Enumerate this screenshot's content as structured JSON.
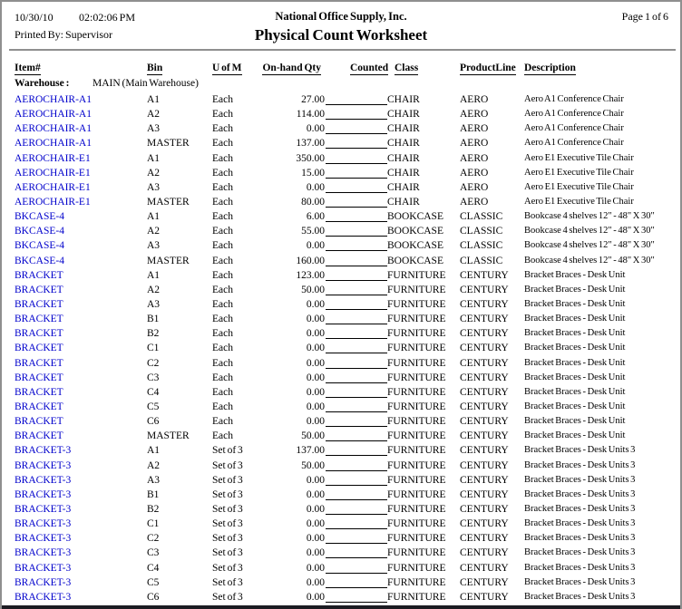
{
  "report": {
    "date": "10/30/10",
    "time": "02:02:06 PM",
    "company": "National Office Supply, Inc.",
    "page": "Page 1 of 6",
    "printed_by": "Printed By: Supervisor",
    "title": "Physical Count Worksheet"
  },
  "colors": {
    "link_blue": "#0000CC",
    "rule_gray": "#8f8f8f",
    "text": "#000000"
  },
  "table": {
    "headers": {
      "item": "Item#",
      "bin": "Bin",
      "uom": "U of M",
      "qty": "On-hand Qty",
      "counted": "Counted",
      "class": "Class",
      "product_line": "ProductLine",
      "description": "Description"
    },
    "warehouse_label": "Warehouse :",
    "warehouse_value": "MAIN (Main Warehouse)",
    "rows": [
      {
        "item": "AEROCHAIR-A1",
        "bin": "A1",
        "uom": "Each",
        "qty": "27.00",
        "class": "CHAIR",
        "product_line": "AERO",
        "description": "Aero A1 Conference Chair"
      },
      {
        "item": "AEROCHAIR-A1",
        "bin": "A2",
        "uom": "Each",
        "qty": "114.00",
        "class": "CHAIR",
        "product_line": "AERO",
        "description": "Aero A1 Conference Chair"
      },
      {
        "item": "AEROCHAIR-A1",
        "bin": "A3",
        "uom": "Each",
        "qty": "0.00",
        "class": "CHAIR",
        "product_line": "AERO",
        "description": "Aero A1 Conference Chair"
      },
      {
        "item": "AEROCHAIR-A1",
        "bin": "MASTER",
        "uom": "Each",
        "qty": "137.00",
        "class": "CHAIR",
        "product_line": "AERO",
        "description": "Aero A1 Conference Chair"
      },
      {
        "item": "AEROCHAIR-E1",
        "bin": "A1",
        "uom": "Each",
        "qty": "350.00",
        "class": "CHAIR",
        "product_line": "AERO",
        "description": "Aero E1 Executive Tile Chair"
      },
      {
        "item": "AEROCHAIR-E1",
        "bin": "A2",
        "uom": "Each",
        "qty": "15.00",
        "class": "CHAIR",
        "product_line": "AERO",
        "description": "Aero E1 Executive Tile Chair"
      },
      {
        "item": "AEROCHAIR-E1",
        "bin": "A3",
        "uom": "Each",
        "qty": "0.00",
        "class": "CHAIR",
        "product_line": "AERO",
        "description": "Aero E1 Executive Tile Chair"
      },
      {
        "item": "AEROCHAIR-E1",
        "bin": "MASTER",
        "uom": "Each",
        "qty": "80.00",
        "class": "CHAIR",
        "product_line": "AERO",
        "description": "Aero E1 Executive Tile Chair"
      },
      {
        "item": "BKCASE-4",
        "bin": "A1",
        "uom": "Each",
        "qty": "6.00",
        "class": "BOOKCASE",
        "product_line": "CLASSIC",
        "description": "Bookcase 4 shelves 12\" - 48\" X 30\""
      },
      {
        "item": "BKCASE-4",
        "bin": "A2",
        "uom": "Each",
        "qty": "55.00",
        "class": "BOOKCASE",
        "product_line": "CLASSIC",
        "description": "Bookcase 4 shelves 12\" - 48\" X 30\""
      },
      {
        "item": "BKCASE-4",
        "bin": "A3",
        "uom": "Each",
        "qty": "0.00",
        "class": "BOOKCASE",
        "product_line": "CLASSIC",
        "description": "Bookcase 4 shelves 12\" - 48\" X 30\""
      },
      {
        "item": "BKCASE-4",
        "bin": "MASTER",
        "uom": "Each",
        "qty": "160.00",
        "class": "BOOKCASE",
        "product_line": "CLASSIC",
        "description": "Bookcase 4 shelves 12\" - 48\" X 30\""
      },
      {
        "item": "BRACKET",
        "bin": "A1",
        "uom": "Each",
        "qty": "123.00",
        "class": "FURNITURE",
        "product_line": "CENTURY",
        "description": "Bracket Braces - Desk Unit"
      },
      {
        "item": "BRACKET",
        "bin": "A2",
        "uom": "Each",
        "qty": "50.00",
        "class": "FURNITURE",
        "product_line": "CENTURY",
        "description": "Bracket Braces - Desk Unit"
      },
      {
        "item": "BRACKET",
        "bin": "A3",
        "uom": "Each",
        "qty": "0.00",
        "class": "FURNITURE",
        "product_line": "CENTURY",
        "description": "Bracket Braces - Desk Unit"
      },
      {
        "item": "BRACKET",
        "bin": "B1",
        "uom": "Each",
        "qty": "0.00",
        "class": "FURNITURE",
        "product_line": "CENTURY",
        "description": "Bracket Braces - Desk Unit"
      },
      {
        "item": "BRACKET",
        "bin": "B2",
        "uom": "Each",
        "qty": "0.00",
        "class": "FURNITURE",
        "product_line": "CENTURY",
        "description": "Bracket Braces - Desk Unit"
      },
      {
        "item": "BRACKET",
        "bin": "C1",
        "uom": "Each",
        "qty": "0.00",
        "class": "FURNITURE",
        "product_line": "CENTURY",
        "description": "Bracket Braces - Desk Unit"
      },
      {
        "item": "BRACKET",
        "bin": "C2",
        "uom": "Each",
        "qty": "0.00",
        "class": "FURNITURE",
        "product_line": "CENTURY",
        "description": "Bracket Braces - Desk Unit"
      },
      {
        "item": "BRACKET",
        "bin": "C3",
        "uom": "Each",
        "qty": "0.00",
        "class": "FURNITURE",
        "product_line": "CENTURY",
        "description": "Bracket Braces - Desk Unit"
      },
      {
        "item": "BRACKET",
        "bin": "C4",
        "uom": "Each",
        "qty": "0.00",
        "class": "FURNITURE",
        "product_line": "CENTURY",
        "description": "Bracket Braces - Desk Unit"
      },
      {
        "item": "BRACKET",
        "bin": "C5",
        "uom": "Each",
        "qty": "0.00",
        "class": "FURNITURE",
        "product_line": "CENTURY",
        "description": "Bracket Braces - Desk Unit"
      },
      {
        "item": "BRACKET",
        "bin": "C6",
        "uom": "Each",
        "qty": "0.00",
        "class": "FURNITURE",
        "product_line": "CENTURY",
        "description": "Bracket Braces - Desk Unit"
      },
      {
        "item": "BRACKET",
        "bin": "MASTER",
        "uom": "Each",
        "qty": "50.00",
        "class": "FURNITURE",
        "product_line": "CENTURY",
        "description": "Bracket Braces - Desk Unit"
      },
      {
        "item": "BRACKET-3",
        "bin": "A1",
        "uom": "Set of 3",
        "qty": "137.00",
        "class": "FURNITURE",
        "product_line": "CENTURY",
        "description": "Bracket Braces - Desk Units 3"
      },
      {
        "item": "BRACKET-3",
        "bin": "A2",
        "uom": "Set of 3",
        "qty": "50.00",
        "class": "FURNITURE",
        "product_line": "CENTURY",
        "description": "Bracket Braces - Desk Units 3"
      },
      {
        "item": "BRACKET-3",
        "bin": "A3",
        "uom": "Set of 3",
        "qty": "0.00",
        "class": "FURNITURE",
        "product_line": "CENTURY",
        "description": "Bracket Braces - Desk Units 3"
      },
      {
        "item": "BRACKET-3",
        "bin": "B1",
        "uom": "Set of 3",
        "qty": "0.00",
        "class": "FURNITURE",
        "product_line": "CENTURY",
        "description": "Bracket Braces - Desk Units 3"
      },
      {
        "item": "BRACKET-3",
        "bin": "B2",
        "uom": "Set of 3",
        "qty": "0.00",
        "class": "FURNITURE",
        "product_line": "CENTURY",
        "description": "Bracket Braces - Desk Units 3"
      },
      {
        "item": "BRACKET-3",
        "bin": "C1",
        "uom": "Set of 3",
        "qty": "0.00",
        "class": "FURNITURE",
        "product_line": "CENTURY",
        "description": "Bracket Braces - Desk Units 3"
      },
      {
        "item": "BRACKET-3",
        "bin": "C2",
        "uom": "Set of 3",
        "qty": "0.00",
        "class": "FURNITURE",
        "product_line": "CENTURY",
        "description": "Bracket Braces - Desk Units 3"
      },
      {
        "item": "BRACKET-3",
        "bin": "C3",
        "uom": "Set of 3",
        "qty": "0.00",
        "class": "FURNITURE",
        "product_line": "CENTURY",
        "description": "Bracket Braces - Desk Units 3"
      },
      {
        "item": "BRACKET-3",
        "bin": "C4",
        "uom": "Set of 3",
        "qty": "0.00",
        "class": "FURNITURE",
        "product_line": "CENTURY",
        "description": "Bracket Braces - Desk Units 3"
      },
      {
        "item": "BRACKET-3",
        "bin": "C5",
        "uom": "Set of 3",
        "qty": "0.00",
        "class": "FURNITURE",
        "product_line": "CENTURY",
        "description": "Bracket Braces - Desk Units 3"
      },
      {
        "item": "BRACKET-3",
        "bin": "C6",
        "uom": "Set of 3",
        "qty": "0.00",
        "class": "FURNITURE",
        "product_line": "CENTURY",
        "description": "Bracket Braces - Desk Units 3"
      }
    ]
  }
}
